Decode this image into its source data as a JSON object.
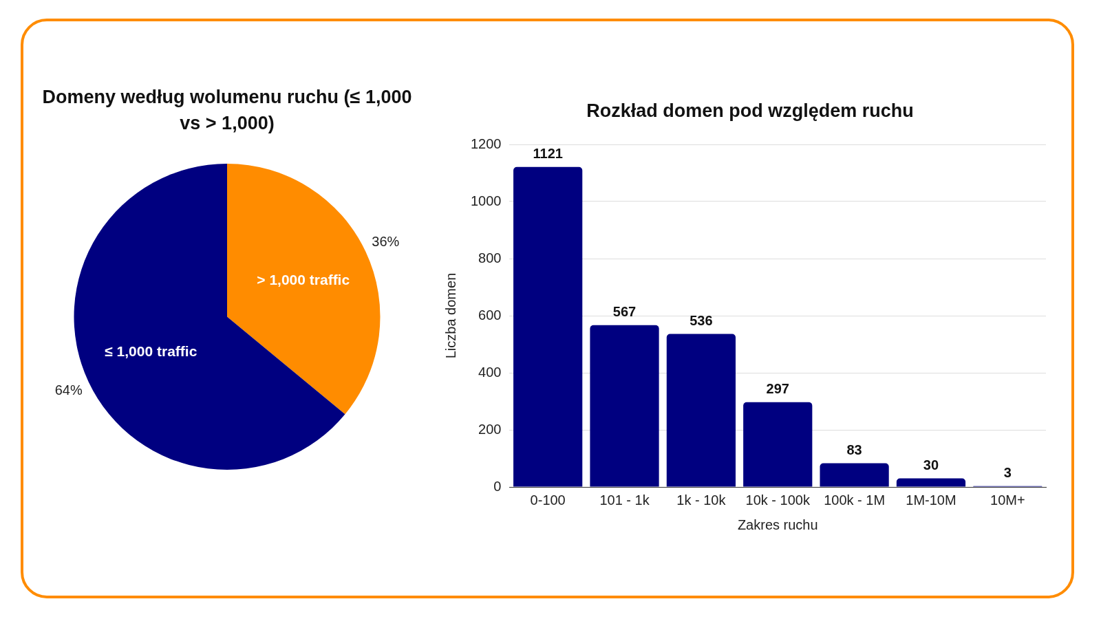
{
  "chart_data": [
    {
      "type": "pie",
      "title": "Domeny według wolumenu ruchu (≤ 1,000 vs > 1,000)",
      "categories": [
        "> 1,000 traffic",
        "≤ 1,000 traffic"
      ],
      "values": [
        36,
        64
      ],
      "colors": [
        "#ff8c00",
        "#000080"
      ],
      "value_labels": [
        "36%",
        "64%"
      ],
      "legend": false
    },
    {
      "type": "bar",
      "title": "Rozkład domen pod względem ruchu",
      "xlabel": "Zakres ruchu",
      "ylabel": "Liczba domen",
      "categories": [
        "0-100",
        "101 - 1k",
        "1k - 10k",
        "10k - 100k",
        "100k - 1M",
        "1M-10M",
        "10M+"
      ],
      "values": [
        1121,
        567,
        536,
        297,
        83,
        30,
        3
      ],
      "color": "#000080",
      "ylim": [
        0,
        1200
      ],
      "yticks": [
        0,
        200,
        400,
        600,
        800,
        1000,
        1200
      ],
      "grid": "y",
      "data_labels": true,
      "legend": false
    }
  ]
}
